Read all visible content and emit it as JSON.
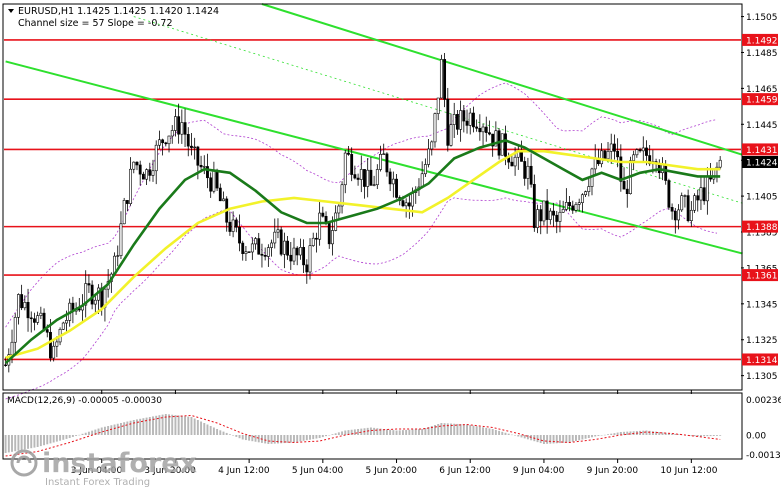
{
  "header": {
    "symbol_line": "EURUSD,H1  1.1425 1.1425 1.1420 1.1424",
    "channel_line": "Channel size = 57 Slope = -0.72"
  },
  "macd_label": "MACD(12,26,9) -0.00005 -0.00030",
  "watermark": {
    "brand": "instaforex",
    "tagline": "Instant Forex Trading"
  },
  "colors": {
    "background": "#ffffff",
    "candle": "#000000",
    "level_line": "#e8121a",
    "level_label_bg": "#e8121a",
    "level_label_text": "#ffffff",
    "channel": "#2ee02e",
    "ma_fast": "#1a7a1a",
    "ma_slow": "#f2f22a",
    "bollinger": "#b040d0",
    "macd_hist": "#b8b8b8",
    "macd_signal": "#e8121a",
    "current_price_bg": "#000000",
    "axis_text": "#000000",
    "grid": "#000000"
  },
  "chart_data": {
    "type": "candlestick",
    "symbol": "EURUSD",
    "timeframe": "H1",
    "ohlc_last": {
      "open": 1.1425,
      "high": 1.1425,
      "low": 1.142,
      "close": 1.1424
    },
    "current_price": "1.1424",
    "ylim": [
      1.1297,
      1.1512
    ],
    "y_ticks": [
      "1.1505",
      "1.1485",
      "1.1465",
      "1.1445",
      "1.1425",
      "1.1405",
      "1.1385",
      "1.1365",
      "1.1345",
      "1.1325",
      "1.1305"
    ],
    "levels": [
      {
        "label": "1.1492",
        "value": 1.1492
      },
      {
        "label": "1.1459",
        "value": 1.1459
      },
      {
        "label": "1.1431",
        "value": 1.1431
      },
      {
        "label": "1.1388",
        "value": 1.1388
      },
      {
        "label": "1.1361",
        "value": 1.1361
      },
      {
        "label": "1.1314",
        "value": 1.1314
      }
    ],
    "x_ticks": [
      "3 Jun 04:00",
      "3 Jun 20:00",
      "4 Jun 12:00",
      "5 Jun 04:00",
      "5 Jun 20:00",
      "6 Jun 12:00",
      "9 Jun 04:00",
      "9 Jun 20:00",
      "10 Jun 12:00"
    ],
    "bar_count": 230,
    "x_tick_bars": [
      30,
      53,
      76,
      99,
      122,
      145,
      168,
      191,
      214
    ],
    "channel_lines": [
      {
        "from": [
          0,
          1.148
        ],
        "to": [
          230,
          1.1373
        ]
      },
      {
        "from": [
          80,
          1.1512
        ],
        "to": [
          230,
          1.1428
        ]
      }
    ],
    "close_path": [
      [
        0,
        1.1311
      ],
      [
        4,
        1.1348
      ],
      [
        8,
        1.1342
      ],
      [
        12,
        1.133
      ],
      [
        15,
        1.1316
      ],
      [
        18,
        1.1335
      ],
      [
        22,
        1.1343
      ],
      [
        26,
        1.1352
      ],
      [
        30,
        1.135
      ],
      [
        34,
        1.1366
      ],
      [
        37,
        1.1398
      ],
      [
        40,
        1.1424
      ],
      [
        44,
        1.1418
      ],
      [
        47,
        1.143
      ],
      [
        50,
        1.144
      ],
      [
        55,
        1.1446
      ],
      [
        58,
        1.1428
      ],
      [
        62,
        1.1418
      ],
      [
        65,
        1.1412
      ],
      [
        69,
        1.1392
      ],
      [
        73,
        1.138
      ],
      [
        77,
        1.1375
      ],
      [
        81,
        1.1378
      ],
      [
        85,
        1.138
      ],
      [
        90,
        1.1372
      ],
      [
        94,
        1.1368
      ],
      [
        98,
        1.1392
      ],
      [
        101,
        1.1382
      ],
      [
        104,
        1.14
      ],
      [
        106,
        1.1428
      ],
      [
        110,
        1.142
      ],
      [
        114,
        1.141
      ],
      [
        118,
        1.1426
      ],
      [
        122,
        1.141
      ],
      [
        126,
        1.14
      ],
      [
        130,
        1.1418
      ],
      [
        133,
        1.1432
      ],
      [
        136,
        1.1478
      ],
      [
        138,
        1.144
      ],
      [
        141,
        1.1446
      ],
      [
        145,
        1.145
      ],
      [
        149,
        1.1447
      ],
      [
        152,
        1.1438
      ],
      [
        156,
        1.1431
      ],
      [
        160,
        1.1424
      ],
      [
        163,
        1.1418
      ],
      [
        165,
        1.1392
      ],
      [
        168,
        1.1396
      ],
      [
        172,
        1.139
      ],
      [
        176,
        1.14
      ],
      [
        180,
        1.1408
      ],
      [
        183,
        1.142
      ],
      [
        187,
        1.1426
      ],
      [
        190,
        1.1432
      ],
      [
        193,
        1.1406
      ],
      [
        196,
        1.1424
      ],
      [
        200,
        1.1428
      ],
      [
        203,
        1.143
      ],
      [
        206,
        1.141
      ],
      [
        208,
        1.1398
      ],
      [
        211,
        1.14
      ],
      [
        214,
        1.1396
      ],
      [
        217,
        1.1406
      ],
      [
        220,
        1.1412
      ],
      [
        223,
        1.1424
      ]
    ],
    "ma_fast": [
      [
        0,
        1.1312
      ],
      [
        8,
        1.1325
      ],
      [
        16,
        1.1336
      ],
      [
        24,
        1.1344
      ],
      [
        32,
        1.1356
      ],
      [
        40,
        1.1378
      ],
      [
        48,
        1.1398
      ],
      [
        56,
        1.1414
      ],
      [
        62,
        1.142
      ],
      [
        70,
        1.1418
      ],
      [
        78,
        1.1408
      ],
      [
        86,
        1.1396
      ],
      [
        94,
        1.139
      ],
      [
        100,
        1.139
      ],
      [
        108,
        1.1394
      ],
      [
        116,
        1.1398
      ],
      [
        124,
        1.1404
      ],
      [
        132,
        1.1412
      ],
      [
        140,
        1.1426
      ],
      [
        148,
        1.1432
      ],
      [
        156,
        1.1436
      ],
      [
        162,
        1.1432
      ],
      [
        168,
        1.1426
      ],
      [
        174,
        1.142
      ],
      [
        180,
        1.1414
      ],
      [
        186,
        1.1418
      ],
      [
        192,
        1.1414
      ],
      [
        198,
        1.1418
      ],
      [
        204,
        1.142
      ],
      [
        210,
        1.1418
      ],
      [
        216,
        1.1416
      ],
      [
        223,
        1.1416
      ]
    ],
    "ma_slow": [
      [
        0,
        1.1315
      ],
      [
        10,
        1.132
      ],
      [
        20,
        1.133
      ],
      [
        30,
        1.1342
      ],
      [
        40,
        1.136
      ],
      [
        50,
        1.1376
      ],
      [
        60,
        1.139
      ],
      [
        70,
        1.1398
      ],
      [
        80,
        1.1402
      ],
      [
        90,
        1.1404
      ],
      [
        100,
        1.1402
      ],
      [
        110,
        1.14
      ],
      [
        120,
        1.1398
      ],
      [
        130,
        1.1396
      ],
      [
        138,
        1.1404
      ],
      [
        146,
        1.1414
      ],
      [
        154,
        1.1424
      ],
      [
        160,
        1.143
      ],
      [
        168,
        1.143
      ],
      [
        176,
        1.1428
      ],
      [
        184,
        1.1426
      ],
      [
        192,
        1.1424
      ],
      [
        200,
        1.1424
      ],
      [
        208,
        1.1422
      ],
      [
        216,
        1.142
      ],
      [
        223,
        1.142
      ]
    ],
    "macd": {
      "ylim": [
        -0.0016,
        0.0028
      ],
      "y_ticks": [
        "0.00236",
        "0.00",
        "-0.00131"
      ],
      "histogram_points": [
        [
          0,
          -0.0012
        ],
        [
          10,
          -0.0008
        ],
        [
          20,
          -0.0002
        ],
        [
          30,
          0.0005
        ],
        [
          40,
          0.001
        ],
        [
          50,
          0.0014
        ],
        [
          58,
          0.0012
        ],
        [
          66,
          0.0004
        ],
        [
          74,
          -0.0003
        ],
        [
          82,
          -0.0006
        ],
        [
          90,
          -0.0005
        ],
        [
          98,
          -0.0002
        ],
        [
          106,
          0.0003
        ],
        [
          114,
          0.0005
        ],
        [
          122,
          0.0003
        ],
        [
          130,
          0.0004
        ],
        [
          136,
          0.0008
        ],
        [
          144,
          0.0007
        ],
        [
          152,
          0.0004
        ],
        [
          160,
          -0.0001
        ],
        [
          168,
          -0.0006
        ],
        [
          176,
          -0.0005
        ],
        [
          184,
          -0.0001
        ],
        [
          192,
          0.0002
        ],
        [
          200,
          0.0003
        ],
        [
          208,
          0.0001
        ],
        [
          216,
          -0.0001
        ],
        [
          223,
          -5e-05
        ]
      ],
      "signal_points": [
        [
          0,
          -0.0014
        ],
        [
          10,
          -0.0011
        ],
        [
          20,
          -0.0005
        ],
        [
          30,
          0.0002
        ],
        [
          40,
          0.0008
        ],
        [
          50,
          0.0012
        ],
        [
          58,
          0.0013
        ],
        [
          66,
          0.0008
        ],
        [
          74,
          0.0001
        ],
        [
          82,
          -0.0004
        ],
        [
          90,
          -0.0005
        ],
        [
          98,
          -0.0004
        ],
        [
          106,
          0.0
        ],
        [
          114,
          0.0003
        ],
        [
          122,
          0.0004
        ],
        [
          130,
          0.0004
        ],
        [
          136,
          0.0006
        ],
        [
          144,
          0.0007
        ],
        [
          152,
          0.0005
        ],
        [
          160,
          0.0001
        ],
        [
          168,
          -0.0004
        ],
        [
          176,
          -0.0005
        ],
        [
          184,
          -0.0003
        ],
        [
          192,
          0.0
        ],
        [
          200,
          0.0002
        ],
        [
          208,
          0.0001
        ],
        [
          216,
          -0.0001
        ],
        [
          223,
          -0.0003
        ]
      ]
    }
  }
}
